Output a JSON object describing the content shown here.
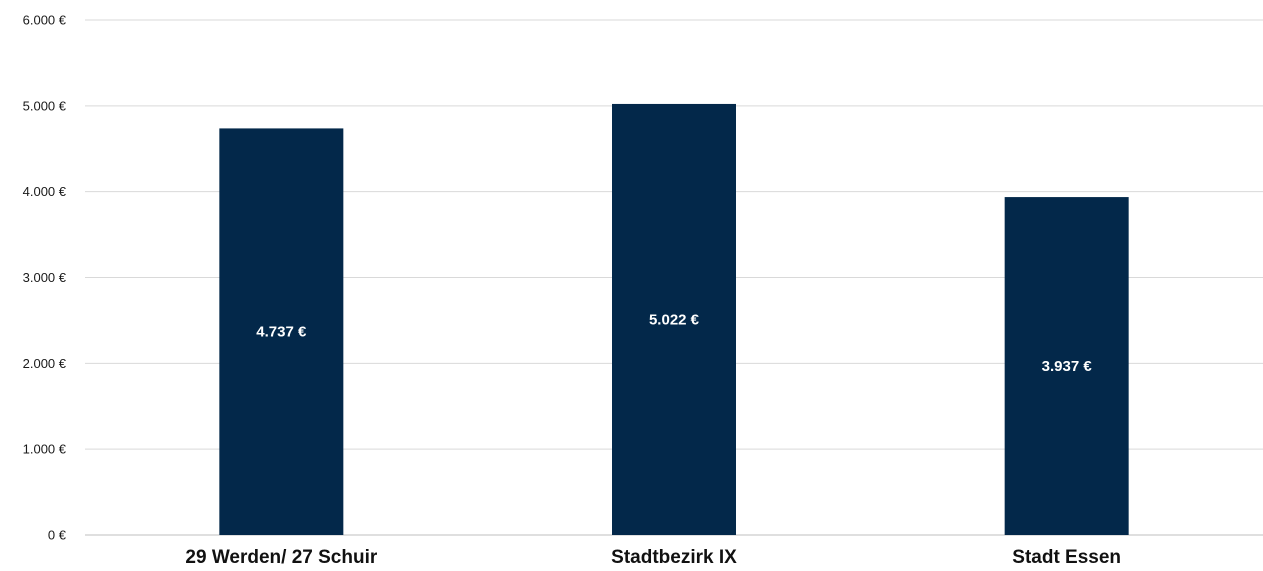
{
  "chart_data": {
    "type": "bar",
    "categories": [
      "29 Werden/ 27 Schuir",
      "Stadtbezirk IX",
      "Stadt Essen"
    ],
    "series": [
      {
        "values": [
          4737,
          5022,
          3937
        ],
        "color": "#03284a"
      }
    ],
    "data_labels": [
      "4.737 €",
      "5.022 €",
      "3.937 €"
    ],
    "y_ticks": [
      0,
      1000,
      2000,
      3000,
      4000,
      5000,
      6000
    ],
    "y_tick_labels": [
      "0 €",
      "1.000 €",
      "2.000 €",
      "3.000 €",
      "4.000 €",
      "5.000 €",
      "6.000 €"
    ],
    "ylim": [
      0,
      6000
    ],
    "grid": true,
    "legend": "none",
    "title": "",
    "xlabel": "",
    "ylabel": ""
  }
}
